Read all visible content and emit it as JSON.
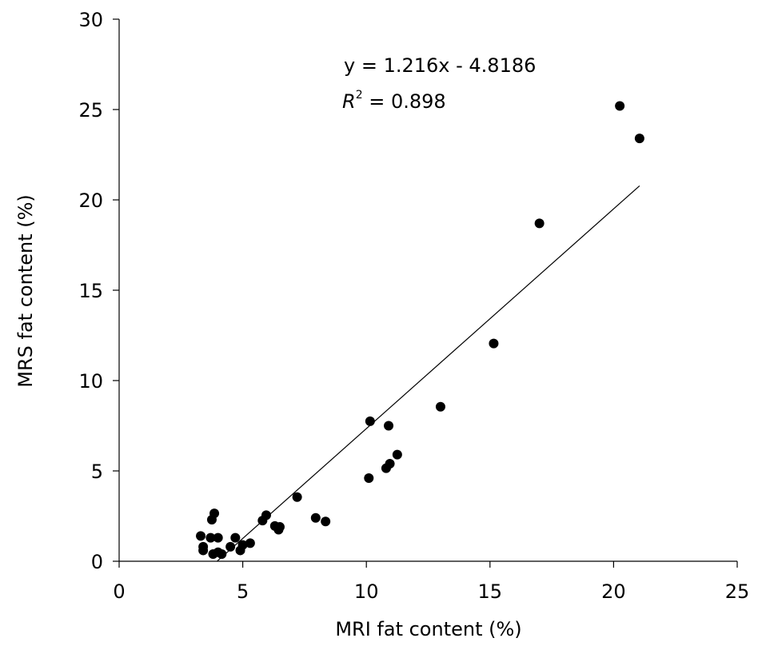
{
  "chart_data": {
    "type": "scatter",
    "xlabel": "MRI fat content (%)",
    "ylabel": "MRS fat content (%)",
    "xlim": [
      0,
      25
    ],
    "ylim": [
      0,
      30
    ],
    "xticks": [
      "0",
      "5",
      "10",
      "15",
      "20",
      "25"
    ],
    "yticks": [
      "0",
      "5",
      "10",
      "15",
      "20",
      "25",
      "30"
    ],
    "grid": false,
    "legend": "none",
    "annotations": {
      "equation": "y = 1.216x - 4.8186",
      "r2_symbol": "R",
      "r2_exponent": "2",
      "r2_value": " = 0.898"
    },
    "trendline": {
      "slope": 1.216,
      "intercept": -4.8186,
      "x_start": 3.96,
      "x_end": 21.05
    },
    "marker_color": "#000000",
    "series": [
      {
        "points": [
          [
            3.3,
            1.4
          ],
          [
            3.4,
            0.8
          ],
          [
            3.4,
            0.6
          ],
          [
            3.7,
            1.3
          ],
          [
            3.75,
            2.3
          ],
          [
            3.8,
            0.4
          ],
          [
            3.85,
            2.65
          ],
          [
            4.0,
            1.3
          ],
          [
            4.0,
            0.5
          ],
          [
            4.15,
            0.4
          ],
          [
            4.5,
            0.8
          ],
          [
            4.7,
            1.3
          ],
          [
            4.9,
            0.6
          ],
          [
            5.0,
            0.9
          ],
          [
            5.3,
            1.0
          ],
          [
            5.8,
            2.25
          ],
          [
            5.95,
            2.55
          ],
          [
            6.3,
            1.95
          ],
          [
            6.45,
            1.75
          ],
          [
            6.5,
            1.9
          ],
          [
            7.2,
            3.55
          ],
          [
            7.95,
            2.4
          ],
          [
            8.35,
            2.2
          ],
          [
            10.1,
            4.6
          ],
          [
            10.15,
            7.75
          ],
          [
            10.8,
            5.15
          ],
          [
            10.9,
            7.5
          ],
          [
            10.95,
            5.4
          ],
          [
            11.25,
            5.9
          ],
          [
            13.0,
            8.55
          ],
          [
            15.15,
            12.05
          ],
          [
            17.0,
            18.7
          ],
          [
            20.25,
            25.2
          ],
          [
            21.05,
            23.4
          ]
        ]
      }
    ]
  }
}
